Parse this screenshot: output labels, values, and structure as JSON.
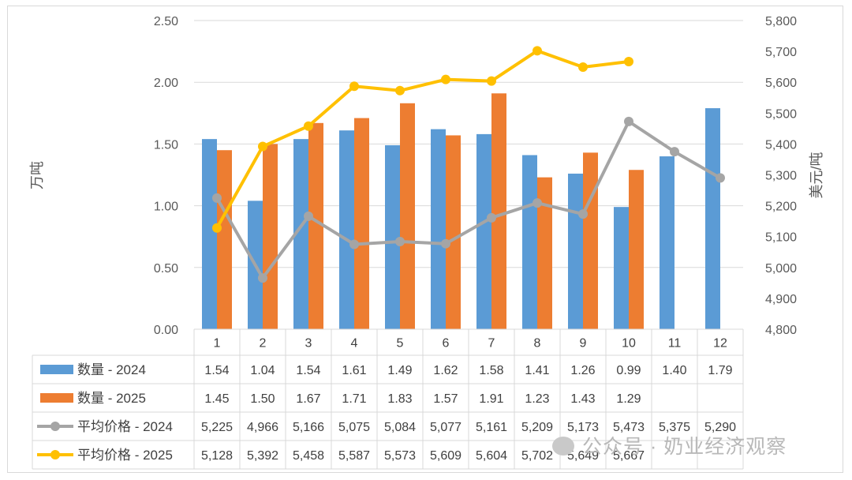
{
  "chart_data": {
    "type": "bar+line",
    "categories": [
      "1",
      "2",
      "3",
      "4",
      "5",
      "6",
      "7",
      "8",
      "9",
      "10",
      "11",
      "12"
    ],
    "y_left_label": "万吨",
    "y_right_label": "美元/吨",
    "y_left_lim": [
      0,
      2.5
    ],
    "y_left_ticks": [
      "0.00",
      "0.50",
      "1.00",
      "1.50",
      "2.00",
      "2.50"
    ],
    "y_right_lim": [
      4800,
      5800
    ],
    "y_right_ticks": [
      "4,800",
      "4,900",
      "5,000",
      "5,100",
      "5,200",
      "5,300",
      "5,400",
      "5,500",
      "5,600",
      "5,700",
      "5,800"
    ],
    "grid": true,
    "legend": "table-left",
    "series": [
      {
        "name": "数量 - 2024",
        "kind": "bar",
        "axis": "left",
        "color": "#5b9bd5",
        "values": [
          1.54,
          1.04,
          1.54,
          1.61,
          1.49,
          1.62,
          1.58,
          1.41,
          1.26,
          0.99,
          1.4,
          1.79
        ],
        "labels": [
          "1.54",
          "1.04",
          "1.54",
          "1.61",
          "1.49",
          "1.62",
          "1.58",
          "1.41",
          "1.26",
          "0.99",
          "1.40",
          "1.79"
        ]
      },
      {
        "name": "数量 - 2025",
        "kind": "bar",
        "axis": "left",
        "color": "#ed7d31",
        "values": [
          1.45,
          1.5,
          1.67,
          1.71,
          1.83,
          1.57,
          1.91,
          1.23,
          1.43,
          1.29,
          null,
          null
        ],
        "labels": [
          "1.45",
          "1.50",
          "1.67",
          "1.71",
          "1.83",
          "1.57",
          "1.91",
          "1.23",
          "1.43",
          "1.29",
          "",
          ""
        ]
      },
      {
        "name": "平均价格 - 2024",
        "kind": "line",
        "axis": "right",
        "color": "#a5a5a5",
        "values": [
          5225,
          4966,
          5166,
          5075,
          5084,
          5077,
          5161,
          5209,
          5173,
          5473,
          5375,
          5290
        ],
        "labels": [
          "5,225",
          "4,966",
          "5,166",
          "5,075",
          "5,084",
          "5,077",
          "5,161",
          "5,209",
          "5,173",
          "5,473",
          "5,375",
          "5,290"
        ]
      },
      {
        "name": "平均价格 - 2025",
        "kind": "line",
        "axis": "right",
        "color": "#ffc000",
        "values": [
          5128,
          5392,
          5458,
          5587,
          5573,
          5609,
          5604,
          5702,
          5649,
          5667,
          null,
          null
        ],
        "labels": [
          "5,128",
          "5,392",
          "5,458",
          "5,587",
          "5,573",
          "5,609",
          "5,604",
          "5,702",
          "5,649",
          "5,667",
          "",
          ""
        ]
      }
    ]
  },
  "watermark": "公众号 · 奶业经济观察"
}
